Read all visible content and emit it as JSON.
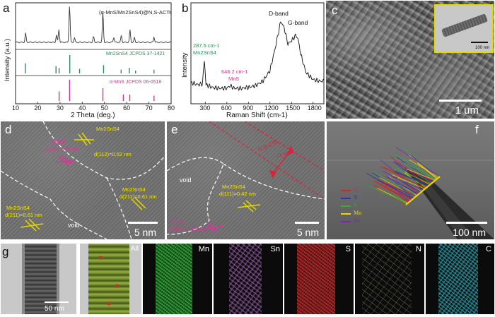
{
  "figure": {
    "panels": [
      {
        "id": "a",
        "type": "xrd",
        "label": "a"
      },
      {
        "id": "b",
        "type": "raman",
        "label": "b"
      },
      {
        "id": "c",
        "type": "sem",
        "label": "c",
        "scale_bar": "1 um",
        "inset_scale_bar": "100 nm"
      },
      {
        "id": "d",
        "type": "hrtem",
        "label": "d",
        "scale_bar": "5 nm"
      },
      {
        "id": "e",
        "type": "hrtem",
        "label": "e",
        "scale_bar": "5 nm"
      },
      {
        "id": "f",
        "type": "stem-linescan",
        "label": "f",
        "scale_bar": "100 nm"
      },
      {
        "id": "g",
        "type": "eds-mapping",
        "label": "g",
        "scale_bar": "50 nm"
      }
    ]
  },
  "chart_data": [
    {
      "type": "line",
      "panel": "a",
      "xlabel": "2 Theta (deg.)",
      "ylabel": "Intensity (a.u.)",
      "xlim": [
        10,
        80
      ],
      "xticks": [
        "10",
        "20",
        "30",
        "40",
        "50",
        "60",
        "70",
        "80"
      ],
      "series": [
        {
          "name": "(α-MnS/Mn2SnS4)@N,S-ACTs",
          "color": "#333333",
          "x": [
            14.5,
            28.4,
            29.5,
            34.3,
            36.5,
            45.1,
            49.3,
            54.2,
            57.6,
            61.5,
            63.5,
            72.3
          ],
          "values": [
            0.25,
            0.2,
            0.35,
            1.0,
            0.12,
            0.15,
            0.82,
            0.14,
            0.18,
            0.33,
            0.12,
            0.15
          ]
        }
      ],
      "references": [
        {
          "name": "Mn2SnS4 JCPDS 37-1421",
          "color": "#2e8b57",
          "x": [
            14.4,
            28.2,
            29.6,
            34.4,
            38.8,
            49.6,
            57.5,
            61.2,
            64.0,
            72.3
          ],
          "values": [
            0.55,
            0.4,
            0.3,
            1.0,
            0.25,
            0.45,
            0.2,
            0.3,
            0.15,
            0.2
          ]
        },
        {
          "name": "α-MnS JCPDS 06-0518",
          "color": "#d6338f",
          "x": [
            29.6,
            34.3,
            49.3,
            58.5,
            61.4,
            72.3
          ],
          "values": [
            0.45,
            1.0,
            0.6,
            0.3,
            0.3,
            0.25
          ]
        }
      ]
    },
    {
      "type": "line",
      "panel": "b",
      "xlabel": "Raman Shift (cm-1)",
      "ylabel": "Intensity",
      "xlim": [
        100,
        1950
      ],
      "xticks": [
        "300",
        "600",
        "900",
        "1200",
        "1500",
        "1800"
      ],
      "series": [
        {
          "name": "",
          "color": "#111111",
          "x": [
            120,
            200,
            260,
            287.5,
            310,
            400,
            500,
            600,
            646.2,
            700,
            800,
            900,
            1000,
            1100,
            1200,
            1280,
            1350,
            1400,
            1450,
            1500,
            1560,
            1590,
            1630,
            1700,
            1800,
            1900
          ],
          "values": [
            0.18,
            0.16,
            0.17,
            0.45,
            0.16,
            0.13,
            0.12,
            0.12,
            0.15,
            0.12,
            0.12,
            0.13,
            0.15,
            0.2,
            0.32,
            0.6,
            0.88,
            0.8,
            0.62,
            0.66,
            0.72,
            0.68,
            0.5,
            0.3,
            0.22,
            0.2
          ]
        }
      ],
      "annotations": [
        {
          "text": "287.5 cm-1",
          "sub": "Mn2SnS4",
          "color": "#2e8b57"
        },
        {
          "text": "646.2 cm-1",
          "sub": "MnS",
          "color": "#d6338f"
        },
        {
          "text": "D-band",
          "color": "#111111"
        },
        {
          "text": "G-band",
          "color": "#111111"
        }
      ]
    }
  ],
  "hrtem_labels": {
    "d": [
      {
        "text": "Mn2SnS4",
        "color": "#f2e600"
      },
      {
        "text": "d(112)=0.52 nm",
        "color": "#f2e600"
      },
      {
        "text": "α-MnS",
        "color": "#e0329a"
      },
      {
        "text": "d(111)=0.30 nm",
        "color": "#e0329a"
      },
      {
        "text": "Mn2SnS4",
        "color": "#f2e600"
      },
      {
        "text": "d(211)=0.61 nm",
        "color": "#f2e600"
      },
      {
        "text": "Mn2SnS4",
        "color": "#f2e600"
      },
      {
        "text": "d(211)=0.61 nm",
        "color": "#f2e600"
      },
      {
        "text": "void",
        "color": "#ffffff"
      }
    ],
    "e": [
      {
        "text": "N,S-CTs",
        "color": "#e0203a"
      },
      {
        "text": "~4 nm",
        "color": "#e0203a"
      },
      {
        "text": "Mn2SnS4",
        "color": "#f2e600"
      },
      {
        "text": "d(111)=0.42 nm",
        "color": "#f2e600"
      },
      {
        "text": "α-MnS",
        "color": "#e0329a"
      },
      {
        "text": "d(200)=0.26 nm",
        "color": "#e0329a"
      },
      {
        "text": "void",
        "color": "#ffffff"
      }
    ]
  },
  "linescan_legend": [
    {
      "text": "C",
      "color": "#e02020"
    },
    {
      "text": "N",
      "color": "#2a3aa0"
    },
    {
      "text": "S",
      "color": "#3aa83a"
    },
    {
      "text": "Mn",
      "color": "#e6d800"
    },
    {
      "text": "Sn",
      "color": "#7a2aa8"
    }
  ],
  "eds_maps": [
    {
      "label": "",
      "color": "#8a8a8a"
    },
    {
      "label": "All",
      "color": "#7a8a3a"
    },
    {
      "label": "Mn",
      "color": "#2dbf3a"
    },
    {
      "label": "Sn",
      "color": "#c070d8"
    },
    {
      "label": "S",
      "color": "#e03030"
    },
    {
      "label": "N",
      "color": "#e8e8a0"
    },
    {
      "label": "C",
      "color": "#2ec8d8"
    }
  ]
}
